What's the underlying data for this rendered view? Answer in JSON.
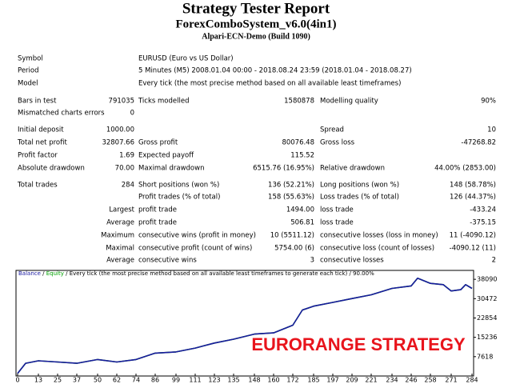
{
  "header": {
    "title": "Strategy Tester Report",
    "subtitle": "ForexComboSystem_v6.0(4in1)",
    "server": "Alpari-ECN-Demo (Build 1090)"
  },
  "table": {
    "rows": [
      {
        "l1": "Symbol",
        "l2": "EURUSD (Euro vs US Dollar)"
      },
      {
        "l1": "Period",
        "l2": "5 Minutes (M5) 2008.01.04 00:00 - 2018.08.24 23:59 (2018.01.04 - 2018.08.27)"
      },
      {
        "l1": "Model",
        "l2": "Every tick (the most precise method based on all available least timeframes)"
      },
      {
        "l1": "Bars in test",
        "v1": "791035",
        "l2": "Ticks modelled",
        "v2": "1580878",
        "l3": "Modelling quality",
        "v3": "90%"
      },
      {
        "l1": "Mismatched charts errors",
        "v1": "0"
      },
      {
        "l1": "Initial deposit",
        "v1": "1000.00",
        "l3": "Spread",
        "v3": "10"
      },
      {
        "l1": "Total net profit",
        "v1": "32807.66",
        "l2": "Gross profit",
        "v2": "80076.48",
        "l3": "Gross loss",
        "v3": "-47268.82"
      },
      {
        "l1": "Profit factor",
        "v1": "1.69",
        "l2": "Expected payoff",
        "v2": "115.52"
      },
      {
        "l1": "Absolute drawdown",
        "v1": "70.00",
        "l2": "Maximal drawdown",
        "v2": "6515.76 (16.95%)",
        "l3": "Relative drawdown",
        "v3": "44.00% (2853.00)"
      },
      {
        "l1": "Total trades",
        "v1": "284",
        "l2": "Short positions (won %)",
        "v2": "136 (52.21%)",
        "l3": "Long positions (won %)",
        "v3": "148 (58.78%)"
      },
      {
        "l2": "Profit trades (% of total)",
        "v2": "158 (55.63%)",
        "l3": "Loss trades (% of total)",
        "v3": "126 (44.37%)"
      },
      {
        "v1": "Largest",
        "l2": "profit trade",
        "v2": "1494.00",
        "l3": "loss trade",
        "v3": "-433.24"
      },
      {
        "v1": "Average",
        "l2": "profit trade",
        "v2": "506.81",
        "l3": "loss trade",
        "v3": "-375.15"
      },
      {
        "v1": "Maximum",
        "l2": "consecutive wins (profit in money)",
        "v2": "10 (5511.12)",
        "l3": "consecutive losses (loss in money)",
        "v3": "11 (-4090.12)"
      },
      {
        "v1": "Maximal",
        "l2": "consecutive profit (count of wins)",
        "v2": "5754.00 (6)",
        "l3": "consecutive loss (count of losses)",
        "v3": "-4090.12 (11)"
      },
      {
        "v1": "Average",
        "l2": "consecutive wins",
        "v2": "3",
        "l3": "consecutive losses",
        "v3": "2"
      }
    ]
  },
  "chart_data": {
    "type": "line",
    "subtitle": "Every tick (the most precise method based on all available least timeframes to generate each tick)",
    "quality": "90.00%",
    "annotation": "EURORANGE STRATEGY",
    "x": [
      0,
      5,
      13,
      25,
      37,
      50,
      62,
      74,
      86,
      99,
      111,
      123,
      135,
      148,
      160,
      172,
      178,
      185,
      197,
      209,
      221,
      234,
      246,
      250,
      258,
      266,
      271,
      277,
      280,
      284
    ],
    "series": [
      {
        "name": "Equity",
        "color": "#00a000",
        "values": [
          1000,
          5000,
          6000,
          5500,
          5000,
          6500,
          5500,
          6500,
          9000,
          9500,
          11000,
          13000,
          14500,
          16500,
          17000,
          20000,
          26000,
          27500,
          29000,
          30500,
          32000,
          34500,
          35500,
          38500,
          36500,
          36000,
          33500,
          34000,
          36000,
          34500
        ]
      },
      {
        "name": "Balance",
        "color": "#1a1aa0",
        "values": [
          1000,
          5000,
          6000,
          5500,
          5000,
          6500,
          5500,
          6500,
          9000,
          9500,
          11000,
          13000,
          14500,
          16500,
          17000,
          20000,
          26000,
          27500,
          29000,
          30500,
          32000,
          34500,
          35500,
          38500,
          36500,
          36000,
          33500,
          34000,
          36000,
          34500
        ]
      }
    ],
    "xlim": [
      0,
      284
    ],
    "xticks": [
      0,
      13,
      25,
      37,
      50,
      62,
      74,
      86,
      99,
      111,
      123,
      135,
      148,
      160,
      172,
      185,
      197,
      209,
      221,
      234,
      246,
      258,
      271,
      284
    ],
    "ylim": [
      0,
      41600
    ],
    "yticks": [
      7618,
      15236,
      22854,
      30472,
      38090
    ]
  }
}
